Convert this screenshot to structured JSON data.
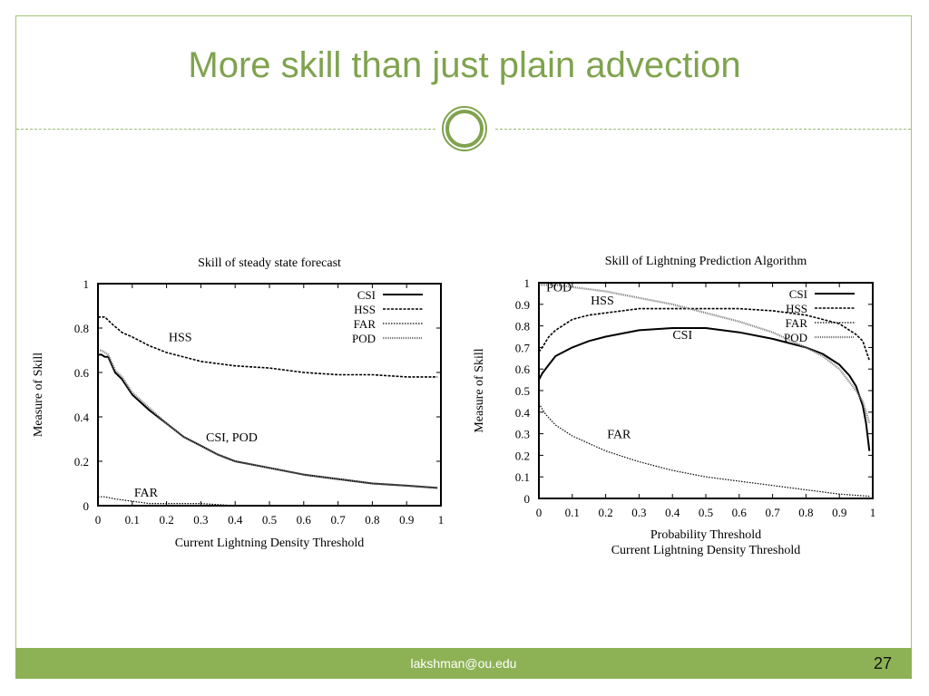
{
  "slide": {
    "title": "More skill than just plain advection",
    "footer_email": "lakshman@ou.edu",
    "page_number": "27",
    "colors": {
      "accent": "#7fa34e",
      "footer_bar": "#8db255",
      "border": "#a6c47a"
    }
  },
  "chart_data": [
    {
      "type": "line",
      "title": "Skill of steady state forecast",
      "xlabel": "Current Lightning Density Threshold",
      "ylabel": "Measure of Skill",
      "xlim": [
        0,
        1
      ],
      "ylim": [
        0,
        1
      ],
      "xticks": [
        "0",
        "0.1",
        "0.2",
        "0.3",
        "0.4",
        "0.5",
        "0.6",
        "0.7",
        "0.8",
        "0.9",
        "1"
      ],
      "yticks": [
        "0",
        "0.2",
        "0.4",
        "0.6",
        "0.8",
        "1"
      ],
      "legend": [
        "CSI",
        "HSS",
        "FAR",
        "POD"
      ],
      "legend_position": "top-right",
      "annotations": [
        {
          "text": "HSS",
          "x": 0.24,
          "y": 0.74
        },
        {
          "text": "CSI, POD",
          "x": 0.39,
          "y": 0.29
        },
        {
          "text": "FAR",
          "x": 0.14,
          "y": 0.04
        }
      ],
      "series": [
        {
          "name": "CSI",
          "x": [
            0,
            0.01,
            0.02,
            0.03,
            0.05,
            0.07,
            0.1,
            0.15,
            0.2,
            0.25,
            0.3,
            0.35,
            0.4,
            0.5,
            0.6,
            0.7,
            0.8,
            0.9,
            0.99
          ],
          "y": [
            0.68,
            0.68,
            0.67,
            0.67,
            0.6,
            0.57,
            0.5,
            0.43,
            0.37,
            0.31,
            0.27,
            0.23,
            0.2,
            0.17,
            0.14,
            0.12,
            0.1,
            0.09,
            0.08
          ]
        },
        {
          "name": "HSS",
          "x": [
            0,
            0.02,
            0.04,
            0.07,
            0.1,
            0.15,
            0.2,
            0.3,
            0.4,
            0.5,
            0.6,
            0.7,
            0.8,
            0.9,
            0.99
          ],
          "y": [
            0.85,
            0.85,
            0.82,
            0.78,
            0.76,
            0.72,
            0.69,
            0.65,
            0.63,
            0.62,
            0.6,
            0.59,
            0.59,
            0.58,
            0.58
          ]
        },
        {
          "name": "FAR",
          "x": [
            0,
            0.02,
            0.05,
            0.1,
            0.15,
            0.2,
            0.3,
            0.4,
            0.99
          ],
          "y": [
            0.04,
            0.04,
            0.03,
            0.02,
            0.01,
            0.01,
            0.01,
            0.0,
            0.0
          ]
        },
        {
          "name": "POD",
          "x": [
            0,
            0.01,
            0.02,
            0.03,
            0.05,
            0.07,
            0.1,
            0.15,
            0.2,
            0.25,
            0.3,
            0.35,
            0.4,
            0.5,
            0.6,
            0.7,
            0.8,
            0.9,
            0.99
          ],
          "y": [
            0.7,
            0.7,
            0.69,
            0.68,
            0.61,
            0.58,
            0.51,
            0.44,
            0.37,
            0.31,
            0.27,
            0.23,
            0.2,
            0.17,
            0.14,
            0.12,
            0.1,
            0.09,
            0.08
          ]
        }
      ]
    },
    {
      "type": "line",
      "title": "Skill of Lightning Prediction Algorithm",
      "xlabel": "Probability Threshold",
      "xlabel2": "Current Lightning Density Threshold",
      "ylabel": "Measure of Skill",
      "xlim": [
        0,
        1
      ],
      "ylim": [
        0,
        1
      ],
      "xticks": [
        "0",
        "0.1",
        "0.2",
        "0.3",
        "0.4",
        "0.5",
        "0.6",
        "0.7",
        "0.8",
        "0.9",
        "1"
      ],
      "yticks": [
        "0",
        "0.1",
        "0.2",
        "0.3",
        "0.4",
        "0.5",
        "0.6",
        "0.7",
        "0.8",
        "0.9",
        "1"
      ],
      "legend": [
        "CSI",
        "HSS",
        "FAR",
        "POD"
      ],
      "legend_position": "top-right",
      "annotations": [
        {
          "text": "POD",
          "x": 0.06,
          "y": 0.96
        },
        {
          "text": "HSS",
          "x": 0.19,
          "y": 0.9
        },
        {
          "text": "CSI",
          "x": 0.43,
          "y": 0.74
        },
        {
          "text": "FAR",
          "x": 0.24,
          "y": 0.28
        }
      ],
      "series": [
        {
          "name": "CSI",
          "x": [
            0,
            0.01,
            0.03,
            0.05,
            0.1,
            0.15,
            0.2,
            0.3,
            0.4,
            0.5,
            0.6,
            0.7,
            0.8,
            0.85,
            0.9,
            0.93,
            0.95,
            0.97,
            0.98,
            0.99
          ],
          "y": [
            0.55,
            0.58,
            0.62,
            0.66,
            0.7,
            0.73,
            0.75,
            0.78,
            0.79,
            0.79,
            0.77,
            0.74,
            0.7,
            0.67,
            0.62,
            0.57,
            0.52,
            0.43,
            0.35,
            0.22
          ]
        },
        {
          "name": "HSS",
          "x": [
            0,
            0.01,
            0.03,
            0.05,
            0.1,
            0.15,
            0.2,
            0.3,
            0.4,
            0.5,
            0.6,
            0.7,
            0.8,
            0.9,
            0.95,
            0.97,
            0.99
          ],
          "y": [
            0.68,
            0.7,
            0.75,
            0.78,
            0.83,
            0.85,
            0.86,
            0.88,
            0.88,
            0.88,
            0.88,
            0.87,
            0.85,
            0.81,
            0.76,
            0.73,
            0.64
          ]
        },
        {
          "name": "FAR",
          "x": [
            0,
            0.02,
            0.05,
            0.1,
            0.2,
            0.3,
            0.4,
            0.5,
            0.6,
            0.7,
            0.8,
            0.9,
            0.99
          ],
          "y": [
            0.44,
            0.39,
            0.34,
            0.29,
            0.22,
            0.17,
            0.13,
            0.1,
            0.08,
            0.06,
            0.04,
            0.02,
            0.01
          ]
        },
        {
          "name": "POD",
          "x": [
            0,
            0.02,
            0.05,
            0.1,
            0.2,
            0.3,
            0.4,
            0.5,
            0.6,
            0.7,
            0.8,
            0.85,
            0.9,
            0.95,
            0.97,
            0.99
          ],
          "y": [
            0.99,
            0.99,
            0.99,
            0.98,
            0.96,
            0.93,
            0.9,
            0.86,
            0.82,
            0.77,
            0.7,
            0.66,
            0.6,
            0.5,
            0.45,
            0.35
          ]
        }
      ]
    }
  ]
}
